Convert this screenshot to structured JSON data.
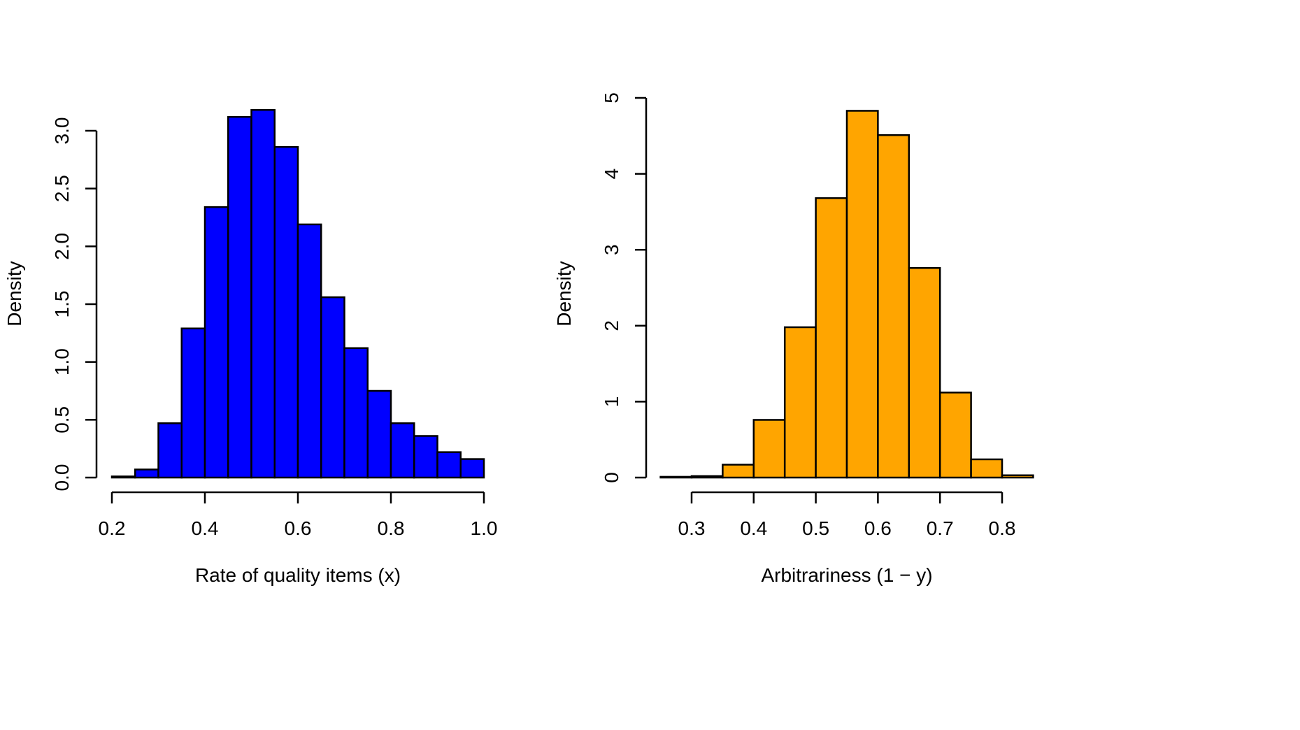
{
  "chart_data": [
    {
      "type": "bar",
      "title": "",
      "xlabel": "Rate of quality items (x)",
      "ylabel": "Density",
      "bar_color": "#0000ff",
      "bin_edges": [
        0.2,
        0.25,
        0.3,
        0.35,
        0.4,
        0.45,
        0.5,
        0.55,
        0.6,
        0.65,
        0.7,
        0.75,
        0.8,
        0.85,
        0.9,
        0.95,
        1.0
      ],
      "values": [
        0.01,
        0.07,
        0.47,
        1.29,
        2.34,
        3.12,
        3.18,
        2.86,
        2.19,
        1.56,
        1.12,
        0.75,
        0.47,
        0.36,
        0.22,
        0.16
      ],
      "xlim": [
        0.2,
        1.0
      ],
      "ylim": [
        0,
        3.0
      ],
      "x_ticks": [
        0.2,
        0.4,
        0.6,
        0.8,
        1.0
      ],
      "x_tick_labels": [
        "0.2",
        "0.4",
        "0.6",
        "0.8",
        "1.0"
      ],
      "y_ticks": [
        0,
        0.5,
        1.0,
        1.5,
        2.0,
        2.5,
        3.0
      ],
      "y_tick_labels": [
        "0.0",
        "0.5",
        "1.0",
        "1.5",
        "2.0",
        "2.5",
        "3.0"
      ],
      "grid": false
    },
    {
      "type": "bar",
      "title": "",
      "xlabel": "Arbitrariness (1 − y)",
      "ylabel": "Density",
      "bar_color": "#ffa500",
      "bin_edges": [
        0.25,
        0.3,
        0.35,
        0.4,
        0.45,
        0.5,
        0.55,
        0.6,
        0.65,
        0.7,
        0.75,
        0.8,
        0.85
      ],
      "values": [
        0.01,
        0.02,
        0.17,
        0.76,
        1.98,
        3.68,
        4.83,
        4.51,
        2.76,
        1.12,
        0.24,
        0.03
      ],
      "xlim": [
        0.3,
        0.8
      ],
      "ylim": [
        0,
        5
      ],
      "x_ticks": [
        0.3,
        0.4,
        0.5,
        0.6,
        0.7,
        0.8
      ],
      "x_tick_labels": [
        "0.3",
        "0.4",
        "0.5",
        "0.6",
        "0.7",
        "0.8"
      ],
      "y_ticks": [
        0,
        1,
        2,
        3,
        4,
        5
      ],
      "y_tick_labels": [
        "0",
        "1",
        "2",
        "3",
        "4",
        "5"
      ],
      "grid": false
    }
  ]
}
